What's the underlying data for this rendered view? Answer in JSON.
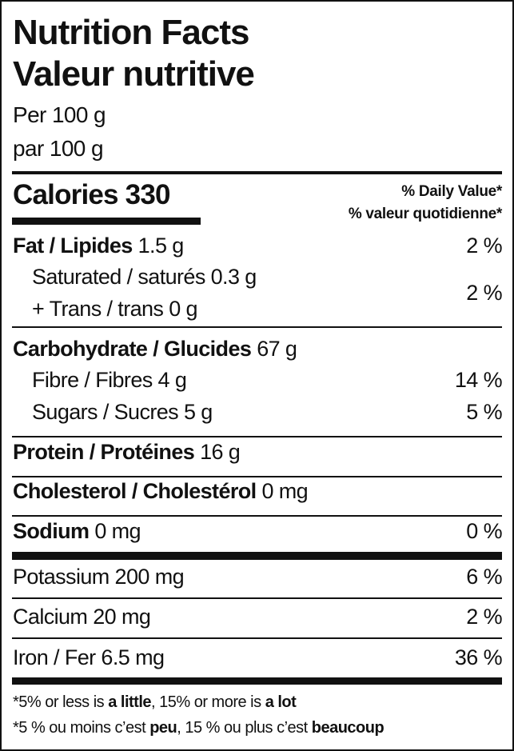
{
  "title_en": "Nutrition Facts",
  "title_fr": "Valeur nutritive",
  "serving_en": "Per 100 g",
  "serving_fr": "par 100 g",
  "calories_label": "Calories",
  "calories_value": "330",
  "dv_header_en": "% Daily Value*",
  "dv_header_fr": "% valeur quotidienne*",
  "rows": {
    "fat": {
      "label": "Fat / Lipides",
      "amount": "1.5 g",
      "dv": "2 %"
    },
    "saturated": {
      "label": "Saturated / saturés 0.3 g"
    },
    "trans": {
      "label": "+ Trans / trans 0 g",
      "dv": "2 %"
    },
    "carb": {
      "label": "Carbohydrate / Glucides",
      "amount": "67 g"
    },
    "fibre": {
      "label": "Fibre / Fibres 4 g",
      "dv": "14 %"
    },
    "sugars": {
      "label": "Sugars / Sucres 5 g",
      "dv": "5 %"
    },
    "protein": {
      "label": "Protein / Protéines",
      "amount": "16 g"
    },
    "cholesterol": {
      "label": "Cholesterol / Cholestérol",
      "amount": "0 mg"
    },
    "sodium": {
      "label": "Sodium",
      "amount": "0 mg",
      "dv": "0 %"
    },
    "potassium": {
      "label": "Potassium 200 mg",
      "dv": "6 %"
    },
    "calcium": {
      "label": "Calcium 20 mg",
      "dv": "2 %"
    },
    "iron": {
      "label": "Iron / Fer 6.5 mg",
      "dv": "36 %"
    }
  },
  "footnote_en": {
    "a": "*5% or less is ",
    "b": "a little",
    "c": ", 15% or more is ",
    "d": "a lot"
  },
  "footnote_fr": {
    "a": "*5 % ou moins c’est ",
    "b": "peu",
    "c": ", 15 % ou plus c’est ",
    "d": "beaucoup"
  }
}
